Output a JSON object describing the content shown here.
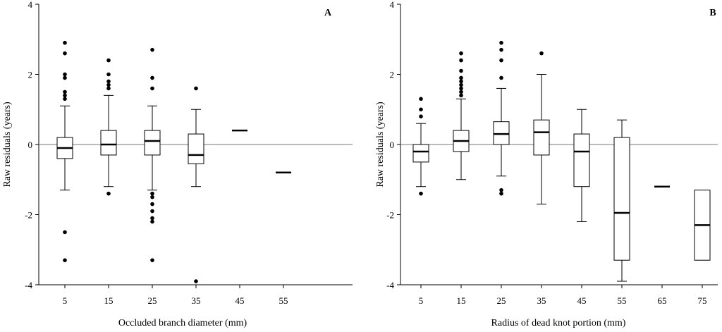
{
  "chart_data": [
    {
      "type": "box",
      "panel_label": "A",
      "xlabel": "Occluded branch diameter (mm)",
      "ylabel": "Raw residuals (years)",
      "ylim": [
        -4,
        4
      ],
      "yticks": [
        4,
        2,
        0,
        -2,
        -4
      ],
      "reference_line": 0,
      "categories": [
        "5",
        "15",
        "25",
        "35",
        "45",
        "55"
      ],
      "boxes": [
        {
          "category": "5",
          "whisker_low": -1.3,
          "q1": -0.4,
          "median": -0.1,
          "q3": 0.2,
          "whisker_high": 1.1,
          "outliers": [
            2.9,
            2.6,
            2.0,
            1.9,
            1.5,
            1.4,
            1.3,
            -2.5,
            -3.3
          ]
        },
        {
          "category": "15",
          "whisker_low": -1.2,
          "q1": -0.3,
          "median": 0.0,
          "q3": 0.4,
          "whisker_high": 1.4,
          "outliers": [
            2.4,
            2.0,
            1.8,
            1.7,
            1.6,
            -1.4
          ]
        },
        {
          "category": "25",
          "whisker_low": -1.3,
          "q1": -0.3,
          "median": 0.1,
          "q3": 0.4,
          "whisker_high": 1.1,
          "outliers": [
            2.7,
            1.9,
            1.6,
            -1.4,
            -1.5,
            -1.7,
            -1.9,
            -2.1,
            -2.2,
            -3.3
          ]
        },
        {
          "category": "35",
          "whisker_low": -1.2,
          "q1": -0.55,
          "median": -0.3,
          "q3": 0.3,
          "whisker_high": 1.0,
          "outliers": [
            1.6,
            -3.9
          ]
        },
        {
          "category": "45",
          "whisker_low": 0.4,
          "q1": 0.4,
          "median": 0.4,
          "q3": 0.4,
          "whisker_high": 0.4,
          "outliers": []
        },
        {
          "category": "55",
          "whisker_low": -0.8,
          "q1": -0.8,
          "median": -0.8,
          "q3": -0.8,
          "whisker_high": -0.8,
          "outliers": []
        }
      ]
    },
    {
      "type": "box",
      "panel_label": "B",
      "xlabel": "Radius of dead knot portion (mm)",
      "ylabel": "Raw residuals (years)",
      "ylim": [
        -4,
        4
      ],
      "yticks": [
        4,
        2,
        0,
        -2,
        -4
      ],
      "reference_line": 0,
      "categories": [
        "5",
        "15",
        "25",
        "35",
        "45",
        "55",
        "65",
        "75"
      ],
      "boxes": [
        {
          "category": "5",
          "whisker_low": -1.2,
          "q1": -0.5,
          "median": -0.2,
          "q3": 0.0,
          "whisker_high": 0.6,
          "outliers": [
            1.3,
            1.0,
            0.8,
            -1.4
          ]
        },
        {
          "category": "15",
          "whisker_low": -1.0,
          "q1": -0.2,
          "median": 0.1,
          "q3": 0.4,
          "whisker_high": 1.3,
          "outliers": [
            2.6,
            2.4,
            2.1,
            1.9,
            1.8,
            1.7,
            1.6,
            1.5,
            1.4
          ]
        },
        {
          "category": "25",
          "whisker_low": -0.9,
          "q1": 0.0,
          "median": 0.3,
          "q3": 0.65,
          "whisker_high": 1.6,
          "outliers": [
            2.9,
            2.7,
            2.4,
            1.9,
            -1.3,
            -1.4
          ]
        },
        {
          "category": "35",
          "whisker_low": -1.7,
          "q1": -0.3,
          "median": 0.35,
          "q3": 0.7,
          "whisker_high": 2.0,
          "outliers": [
            2.6
          ]
        },
        {
          "category": "45",
          "whisker_low": -2.2,
          "q1": -1.2,
          "median": -0.2,
          "q3": 0.3,
          "whisker_high": 1.0,
          "outliers": []
        },
        {
          "category": "55",
          "whisker_low": -3.9,
          "q1": -3.3,
          "median": -1.95,
          "q3": 0.2,
          "whisker_high": 0.7,
          "outliers": []
        },
        {
          "category": "65",
          "whisker_low": -1.2,
          "q1": -1.2,
          "median": -1.2,
          "q3": -1.2,
          "whisker_high": -1.2,
          "outliers": []
        },
        {
          "category": "75",
          "whisker_low": -3.3,
          "q1": -3.3,
          "median": -2.3,
          "q3": -1.3,
          "whisker_high": -1.3,
          "outliers": []
        }
      ]
    }
  ]
}
